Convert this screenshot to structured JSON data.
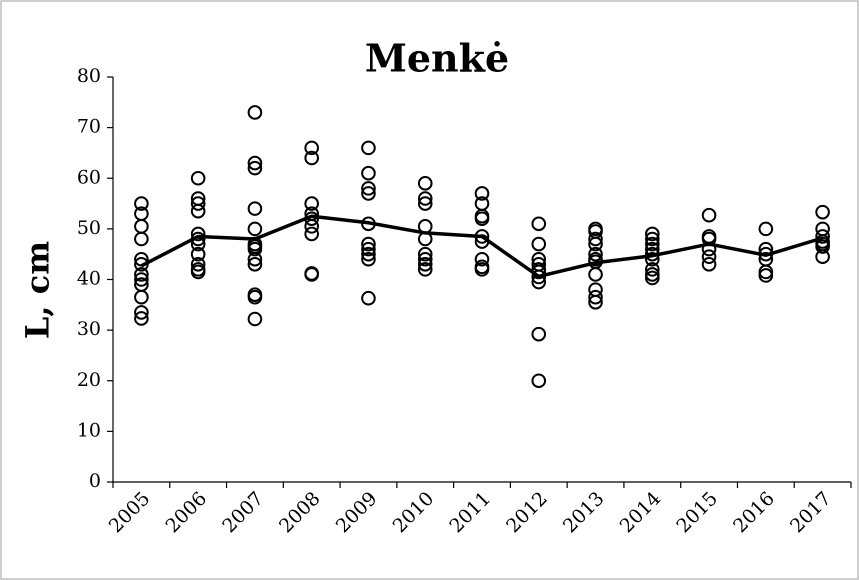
{
  "chart_data": {
    "type": "line",
    "title": "Menkė",
    "y_label": "L, cm",
    "categories": [
      "2005",
      "2006",
      "2007",
      "2008",
      "2009",
      "2010",
      "2011",
      "2012",
      "2013",
      "2014",
      "2015",
      "2016",
      "2017"
    ],
    "values": [
      42.7,
      48.5,
      48,
      52.5,
      51.2,
      49.2,
      48.5,
      40.6,
      43.3,
      44.7,
      47,
      44.8,
      48.2
    ],
    "observations": [
      [
        55,
        53,
        50.5,
        48,
        44,
        43,
        41,
        40,
        39,
        36.5,
        33.5,
        32.3
      ],
      [
        60,
        56,
        55,
        53.5,
        49,
        48,
        47,
        45,
        43,
        42,
        41.5
      ],
      [
        73,
        63,
        62,
        54,
        50,
        47,
        46.5,
        46,
        44,
        43,
        37,
        36.5,
        32.2
      ],
      [
        66,
        64,
        55,
        53,
        52,
        50.5,
        49,
        41,
        41.2
      ],
      [
        66,
        61,
        58,
        57,
        51,
        47,
        46,
        45,
        44,
        36.3
      ],
      [
        59,
        56,
        55,
        50.5,
        48,
        45,
        44,
        43,
        42
      ],
      [
        57,
        55,
        52.5,
        52,
        48.5,
        47.5,
        44,
        42.5,
        42
      ],
      [
        51,
        47,
        44,
        43,
        42,
        41.5,
        40.5,
        39.5,
        29.2,
        20
      ],
      [
        50,
        49.5,
        48,
        47,
        45,
        44,
        43.5,
        41,
        38,
        36.5,
        35.5
      ],
      [
        49,
        48,
        47,
        46,
        45,
        44,
        42,
        41,
        40.3
      ],
      [
        52.7,
        48.5,
        48,
        46,
        44.5,
        43
      ],
      [
        50,
        46,
        45,
        44,
        41.5,
        40.8
      ],
      [
        53.3,
        50,
        48.5,
        47.5,
        47,
        46.5,
        44.5
      ]
    ],
    "color": "#000000",
    "ylim": [
      0,
      80
    ],
    "yticks": [
      0,
      10,
      20,
      30,
      40,
      50,
      60,
      70,
      80
    ],
    "grid": false
  }
}
